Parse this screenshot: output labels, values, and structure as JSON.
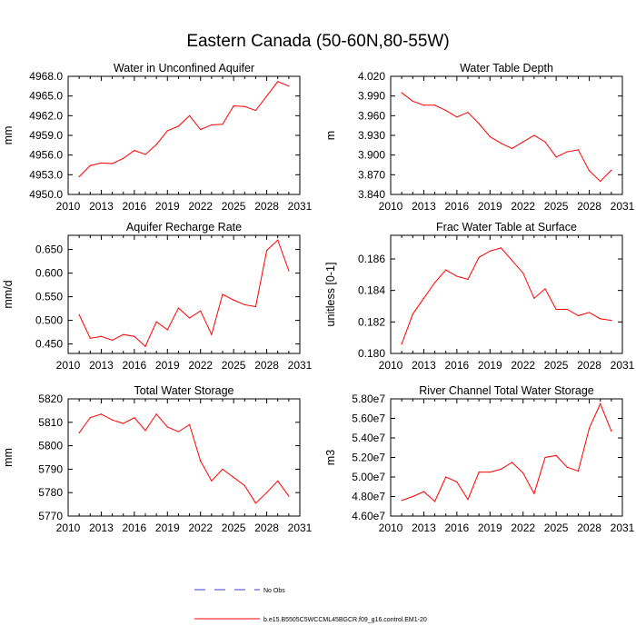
{
  "title": "Eastern Canada (50-60N,80-55W)",
  "colors": {
    "model": "#ff0000",
    "obs": "#3c3cd0",
    "axis": "#000000"
  },
  "legend": {
    "obs_label": "No Obs",
    "model_label": "b.e15.B5505C5WCCML45BGCR.f09_g16.control.EM1-20"
  },
  "chart_data": [
    {
      "type": "line",
      "title": "Water in Unconfined Aquifer",
      "xlabel": "",
      "ylabel": "mm",
      "xlim": [
        2010,
        2031
      ],
      "ylim": [
        4950.0,
        4968.0
      ],
      "xticks": [
        2010,
        2013,
        2016,
        2019,
        2022,
        2025,
        2028,
        2031
      ],
      "xtick_labels": [
        "2010",
        "2013",
        "2016",
        "2019",
        "2022",
        "2025",
        "2028",
        "2031"
      ],
      "yticks": [
        4950.0,
        4953.0,
        4956.0,
        4959.0,
        4962.0,
        4965.0,
        4968.0
      ],
      "ytick_labels": [
        "4950.0",
        "4953.0",
        "4956.0",
        "4959.0",
        "4962.0",
        "4965.0",
        "4968.0"
      ],
      "x": [
        2011,
        2012,
        2013,
        2014,
        2015,
        2016,
        2017,
        2018,
        2019,
        2020,
        2021,
        2022,
        2023,
        2024,
        2025,
        2026,
        2027,
        2028,
        2029,
        2030
      ],
      "series": [
        {
          "name": "b.e15.B5505C5WCCML45BGCR.f09_g16.control.EM1-20",
          "values": [
            4952.7,
            4954.4,
            4954.8,
            4954.7,
            4955.5,
            4956.7,
            4956.1,
            4957.6,
            4959.7,
            4960.4,
            4962.0,
            4959.9,
            4960.6,
            4960.7,
            4963.5,
            4963.4,
            4962.8,
            4965.0,
            4967.2,
            4966.5
          ]
        }
      ]
    },
    {
      "type": "line",
      "title": "Water Table Depth",
      "xlabel": "",
      "ylabel": "m",
      "xlim": [
        2010,
        2031
      ],
      "ylim": [
        3.84,
        4.02
      ],
      "xticks": [
        2010,
        2013,
        2016,
        2019,
        2022,
        2025,
        2028,
        2031
      ],
      "xtick_labels": [
        "2010",
        "2013",
        "2016",
        "2019",
        "2022",
        "2025",
        "2028",
        "2031"
      ],
      "yticks": [
        3.84,
        3.87,
        3.9,
        3.93,
        3.96,
        3.99,
        4.02
      ],
      "ytick_labels": [
        "3.840",
        "3.870",
        "3.900",
        "3.930",
        "3.960",
        "3.990",
        "4.020"
      ],
      "x": [
        2011,
        2012,
        2013,
        2014,
        2015,
        2016,
        2017,
        2018,
        2019,
        2020,
        2021,
        2022,
        2023,
        2024,
        2025,
        2026,
        2027,
        2028,
        2029,
        2030
      ],
      "series": [
        {
          "name": "b.e15.B5505C5WCCML45BGCR.f09_g16.control.EM1-20",
          "values": [
            3.995,
            3.982,
            3.976,
            3.976,
            3.968,
            3.958,
            3.965,
            3.948,
            3.928,
            3.918,
            3.91,
            3.92,
            3.93,
            3.92,
            3.897,
            3.905,
            3.908,
            3.876,
            3.86,
            3.877
          ]
        }
      ]
    },
    {
      "type": "line",
      "title": "Aquifer Recharge Rate",
      "xlabel": "",
      "ylabel": "mm/d",
      "xlim": [
        2010,
        2031
      ],
      "ylim": [
        0.43,
        0.68
      ],
      "xticks": [
        2010,
        2013,
        2016,
        2019,
        2022,
        2025,
        2028,
        2031
      ],
      "xtick_labels": [
        "2010",
        "2013",
        "2016",
        "2019",
        "2022",
        "2025",
        "2028",
        "2031"
      ],
      "yticks": [
        0.45,
        0.5,
        0.55,
        0.6,
        0.65
      ],
      "ytick_labels": [
        "0.450",
        "0.500",
        "0.550",
        "0.600",
        "0.650"
      ],
      "x": [
        2011,
        2012,
        2013,
        2014,
        2015,
        2016,
        2017,
        2018,
        2019,
        2020,
        2021,
        2022,
        2023,
        2024,
        2025,
        2026,
        2027,
        2028,
        2029,
        2030
      ],
      "series": [
        {
          "name": "b.e15.B5505C5WCCML45BGCR.f09_g16.control.EM1-20",
          "values": [
            0.512,
            0.462,
            0.466,
            0.458,
            0.47,
            0.466,
            0.445,
            0.497,
            0.48,
            0.526,
            0.505,
            0.52,
            0.47,
            0.555,
            0.543,
            0.533,
            0.529,
            0.648,
            0.67,
            0.605
          ]
        }
      ]
    },
    {
      "type": "line",
      "title": "Frac Water Table at Surface",
      "xlabel": "",
      "ylabel": "unitless [0-1]",
      "xlim": [
        2010,
        2031
      ],
      "ylim": [
        0.18,
        0.1875
      ],
      "xticks": [
        2010,
        2013,
        2016,
        2019,
        2022,
        2025,
        2028,
        2031
      ],
      "xtick_labels": [
        "2010",
        "2013",
        "2016",
        "2019",
        "2022",
        "2025",
        "2028",
        "2031"
      ],
      "yticks": [
        0.18,
        0.182,
        0.184,
        0.186
      ],
      "ytick_labels": [
        "0.180",
        "0.182",
        "0.184",
        "0.186"
      ],
      "x": [
        2011,
        2012,
        2013,
        2014,
        2015,
        2016,
        2017,
        2018,
        2019,
        2020,
        2021,
        2022,
        2023,
        2024,
        2025,
        2026,
        2027,
        2028,
        2029,
        2030
      ],
      "series": [
        {
          "name": "b.e15.B5505C5WCCML45BGCR.f09_g16.control.EM1-20",
          "values": [
            0.1806,
            0.1825,
            0.1835,
            0.1845,
            0.1853,
            0.1849,
            0.1847,
            0.1861,
            0.1865,
            0.1867,
            0.1859,
            0.1851,
            0.1835,
            0.1841,
            0.1828,
            0.1828,
            0.1824,
            0.1826,
            0.1822,
            0.1821
          ]
        }
      ]
    },
    {
      "type": "line",
      "title": "Total Water Storage",
      "xlabel": "",
      "ylabel": "mm",
      "xlim": [
        2010,
        2031
      ],
      "ylim": [
        5770,
        5820
      ],
      "xticks": [
        2010,
        2013,
        2016,
        2019,
        2022,
        2025,
        2028,
        2031
      ],
      "xtick_labels": [
        "2010",
        "2013",
        "2016",
        "2019",
        "2022",
        "2025",
        "2028",
        "2031"
      ],
      "yticks": [
        5770,
        5780,
        5790,
        5800,
        5810,
        5820
      ],
      "ytick_labels": [
        "5770",
        "5780",
        "5790",
        "5800",
        "5810",
        "5820"
      ],
      "x": [
        2011,
        2012,
        2013,
        2014,
        2015,
        2016,
        2017,
        2018,
        2019,
        2020,
        2021,
        2022,
        2023,
        2024,
        2025,
        2026,
        2027,
        2028,
        2029,
        2030
      ],
      "series": [
        {
          "name": "b.e15.B5505C5WCCML45BGCR.f09_g16.control.EM1-20",
          "values": [
            5805.5,
            5812.0,
            5813.5,
            5811.0,
            5809.5,
            5812.0,
            5806.5,
            5813.5,
            5808.0,
            5806.0,
            5809.0,
            5793.5,
            5785.0,
            5790.0,
            5786.5,
            5783.0,
            5775.5,
            5780.0,
            5785.0,
            5778.5
          ]
        }
      ]
    },
    {
      "type": "line",
      "title": "River Channel Total Water Storage",
      "xlabel": "",
      "ylabel": "m3",
      "xlim": [
        2010,
        2031
      ],
      "ylim": [
        46000000,
        58000000
      ],
      "xticks": [
        2010,
        2013,
        2016,
        2019,
        2022,
        2025,
        2028,
        2031
      ],
      "xtick_labels": [
        "2010",
        "2013",
        "2016",
        "2019",
        "2022",
        "2025",
        "2028",
        "2031"
      ],
      "yticks": [
        46000000,
        48000000,
        50000000,
        52000000,
        54000000,
        56000000,
        58000000
      ],
      "ytick_labels": [
        "4.60e7",
        "4.80e7",
        "5.00e7",
        "5.20e7",
        "5.40e7",
        "5.60e7",
        "5.80e7"
      ],
      "x": [
        2011,
        2012,
        2013,
        2014,
        2015,
        2016,
        2017,
        2018,
        2019,
        2020,
        2021,
        2022,
        2023,
        2024,
        2025,
        2026,
        2027,
        2028,
        2029,
        2030
      ],
      "series": [
        {
          "name": "b.e15.B5505C5WCCML45BGCR.f09_g16.control.EM1-20",
          "values": [
            47600000,
            48000000,
            48500000,
            47500000,
            50000000,
            49500000,
            47700000,
            50500000,
            50500000,
            50800000,
            51500000,
            50400000,
            48300000,
            52000000,
            52200000,
            51000000,
            50600000,
            55000000,
            57500000,
            54700000
          ]
        }
      ]
    }
  ]
}
